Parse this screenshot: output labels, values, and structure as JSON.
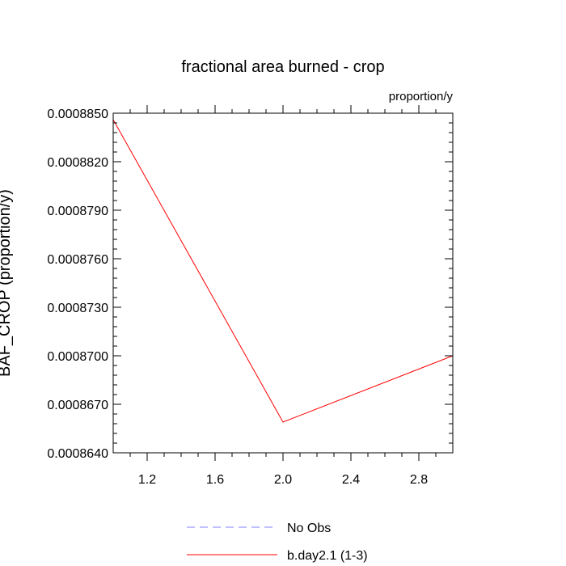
{
  "chart_data": {
    "type": "line",
    "title": "fractional area burned - crop",
    "units": "proportion/y",
    "ylabel": "BAF_CROP  (proportion/y)",
    "xlabel": "",
    "xlim": [
      1.0,
      3.0
    ],
    "ylim": [
      0.000864,
      0.000885
    ],
    "x_ticks": [
      1.2,
      1.6,
      2.0,
      2.4,
      2.8
    ],
    "x_tick_labels": [
      "1.2",
      "1.6",
      "2.0",
      "2.4",
      "2.8"
    ],
    "y_ticks": [
      0.000864,
      0.000867,
      0.00087,
      0.000873,
      0.000876,
      0.000879,
      0.000882,
      0.000885
    ],
    "y_tick_labels": [
      "0.0008640",
      "0.0008670",
      "0.0008700",
      "0.0008730",
      "0.0008760",
      "0.0008790",
      "0.0008820",
      "0.0008850"
    ],
    "grid": false,
    "legend_position": "bottom",
    "series": [
      {
        "name": "b.day2.1 (1-3)",
        "color": "#ff0000",
        "style": "solid",
        "x": [
          1.0,
          2.0,
          3.0
        ],
        "y": [
          0.0008846,
          0.0008659,
          0.00087
        ]
      }
    ],
    "legend": [
      {
        "label": "No Obs",
        "color": "#8080ff",
        "style": "dashed"
      },
      {
        "label": "b.day2.1 (1-3)",
        "color": "#ff0000",
        "style": "solid"
      }
    ]
  }
}
